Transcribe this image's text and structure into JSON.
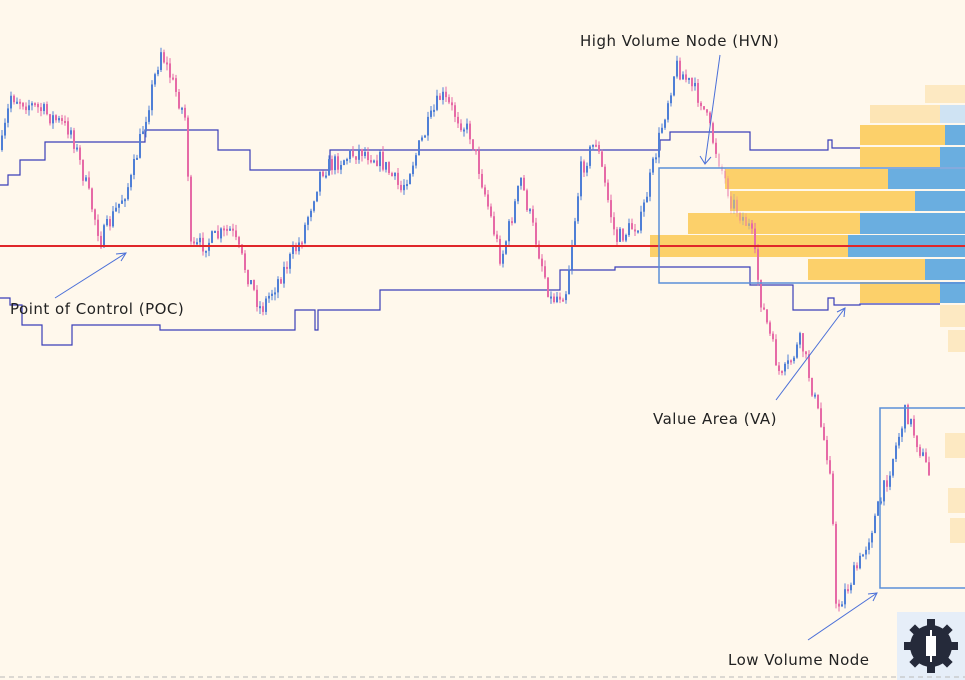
{
  "annotations": [
    {
      "label": "High Volume Node (HVN)"
    },
    {
      "label": "Point of Control (POC)"
    },
    {
      "label": "Value Area (VA)"
    },
    {
      "label": "Low Volume Node"
    }
  ]
}
